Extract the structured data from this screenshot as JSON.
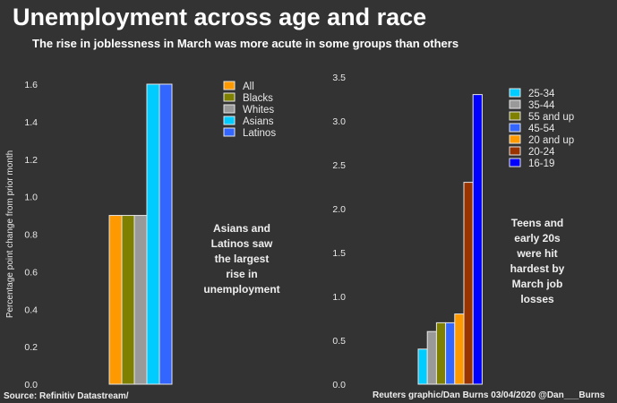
{
  "title": "Unemployment across age and race",
  "subtitle": "The rise in joblessness in March was more acute in some groups than others",
  "source": "Source: Refinitiv Datastream/",
  "credit": "Reuters graphic/Dan Burns 03/04/2020 @Dan___Burns",
  "chart_data": [
    {
      "type": "bar",
      "ylabel": "Percentage point change from prior month",
      "ylim": [
        0,
        1.6
      ],
      "yticks": [
        "0.0",
        "0.2",
        "0.4",
        "0.6",
        "0.8",
        "1.0",
        "1.2",
        "1.4",
        "1.6"
      ],
      "grid": false,
      "legend_position": "top-right",
      "series": [
        {
          "name": "All",
          "value": 0.9,
          "color": "#ff9900"
        },
        {
          "name": "Blacks",
          "value": 0.9,
          "color": "#808000"
        },
        {
          "name": "Whites",
          "value": 0.9,
          "color": "#999999"
        },
        {
          "name": "Asians",
          "value": 1.6,
          "color": "#00ccff"
        },
        {
          "name": "Latinos",
          "value": 1.6,
          "color": "#3366ff"
        }
      ],
      "annotation": [
        "Asians and",
        "Latinos saw",
        "the largest",
        "rise in",
        "unemployment"
      ]
    },
    {
      "type": "bar",
      "ylim": [
        0,
        3.5
      ],
      "yticks": [
        "0.0",
        "0.5",
        "1.0",
        "1.5",
        "2.0",
        "2.5",
        "3.0",
        "3.5"
      ],
      "grid": false,
      "legend_position": "top-right",
      "series": [
        {
          "name": "25-34",
          "value": 0.4,
          "color": "#00ccff"
        },
        {
          "name": "35-44",
          "value": 0.6,
          "color": "#999999"
        },
        {
          "name": "55 and up",
          "value": 0.7,
          "color": "#808000"
        },
        {
          "name": "45-54",
          "value": 0.7,
          "color": "#3366ff"
        },
        {
          "name": "20 and up",
          "value": 0.8,
          "color": "#ff9900"
        },
        {
          "name": "20-24",
          "value": 2.3,
          "color": "#993300"
        },
        {
          "name": "16-19",
          "value": 3.3,
          "color": "#0000ff"
        }
      ],
      "annotation": [
        "Teens and",
        "early 20s",
        "were hit",
        "hardest by",
        "March job",
        "losses"
      ]
    }
  ]
}
